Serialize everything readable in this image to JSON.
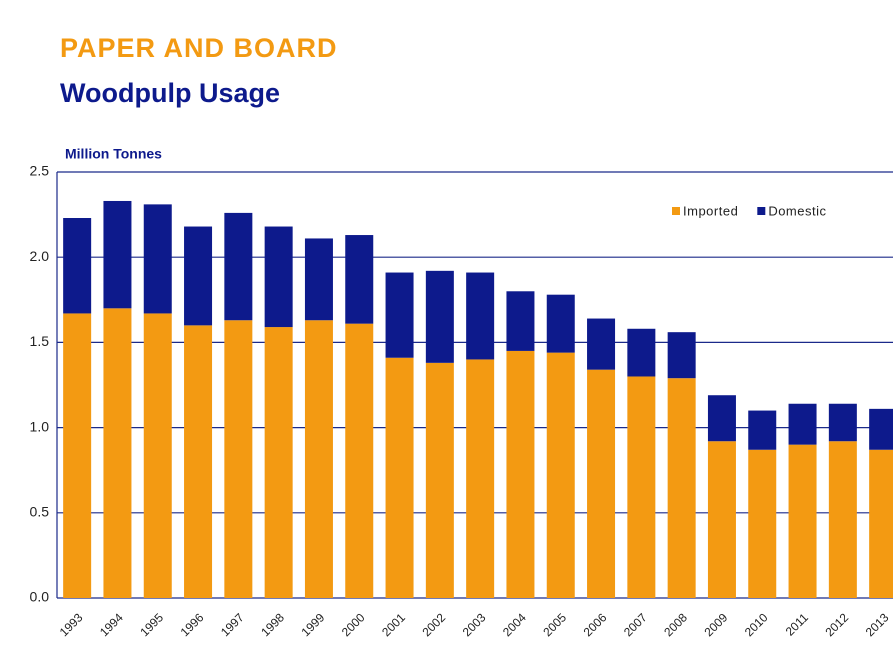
{
  "chart_data": {
    "type": "stacked_bar",
    "title": "PAPER AND BOARD",
    "subtitle": "Woodpulp Usage",
    "y_axis_label": "Million Tonnes",
    "categories": [
      "1993",
      "1994",
      "1995",
      "1996",
      "1997",
      "1998",
      "1999",
      "2000",
      "2001",
      "2002",
      "2003",
      "2004",
      "2005",
      "2006",
      "2007",
      "2008",
      "2009",
      "2010",
      "2011",
      "2012",
      "2013"
    ],
    "series": [
      {
        "name": "Imported",
        "color": "#f39a12",
        "values": [
          1.67,
          1.7,
          1.67,
          1.6,
          1.63,
          1.59,
          1.63,
          1.61,
          1.41,
          1.38,
          1.4,
          1.45,
          1.44,
          1.34,
          1.3,
          1.29,
          0.92,
          0.87,
          0.9,
          0.92,
          0.87
        ]
      },
      {
        "name": "Domestic",
        "color": "#0d1a8c",
        "values": [
          0.56,
          0.63,
          0.64,
          0.58,
          0.63,
          0.59,
          0.48,
          0.52,
          0.5,
          0.54,
          0.51,
          0.35,
          0.34,
          0.3,
          0.28,
          0.27,
          0.27,
          0.23,
          0.24,
          0.22,
          0.24
        ]
      }
    ],
    "ylim": [
      0,
      2.5
    ],
    "yticks": [
      {
        "value": 0,
        "label": "0.0"
      },
      {
        "value": 0.5,
        "label": "0.5"
      },
      {
        "value": 1,
        "label": "1.0"
      },
      {
        "value": 1.5,
        "label": "1.5"
      },
      {
        "value": 2,
        "label": "2.0"
      },
      {
        "value": 2.5,
        "label": "2.5"
      }
    ],
    "grid": true,
    "legend": "top-right"
  }
}
